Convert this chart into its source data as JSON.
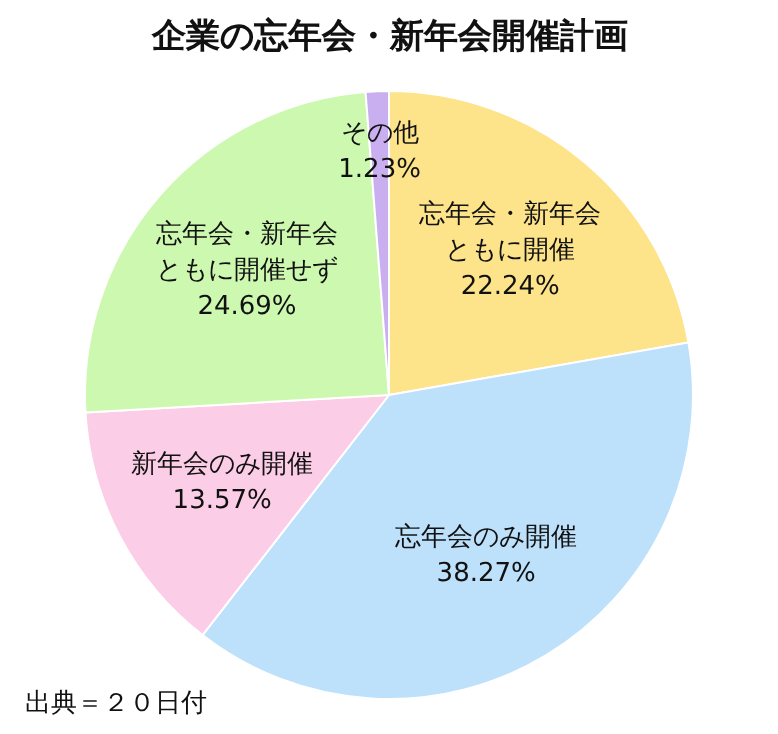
{
  "chart_data": {
    "type": "pie",
    "title": "企業の忘年会・新年会開催計画",
    "categories": [
      "忘年会・新年会ともに開催",
      "忘年会のみ開催",
      "新年会のみ開催",
      "忘年会・新年会ともに開催せず",
      "その他"
    ],
    "values": [
      22.24,
      38.27,
      13.57,
      24.69,
      1.23
    ],
    "value_labels": [
      "22.24%",
      "38.27%",
      "13.57%",
      "24.69%",
      "1.23%"
    ],
    "colors": [
      "#fde38a",
      "#bde0fb",
      "#fbcde6",
      "#cdf8b0",
      "#c9aef0"
    ],
    "annotations": [
      "出典＝２０日付"
    ]
  }
}
